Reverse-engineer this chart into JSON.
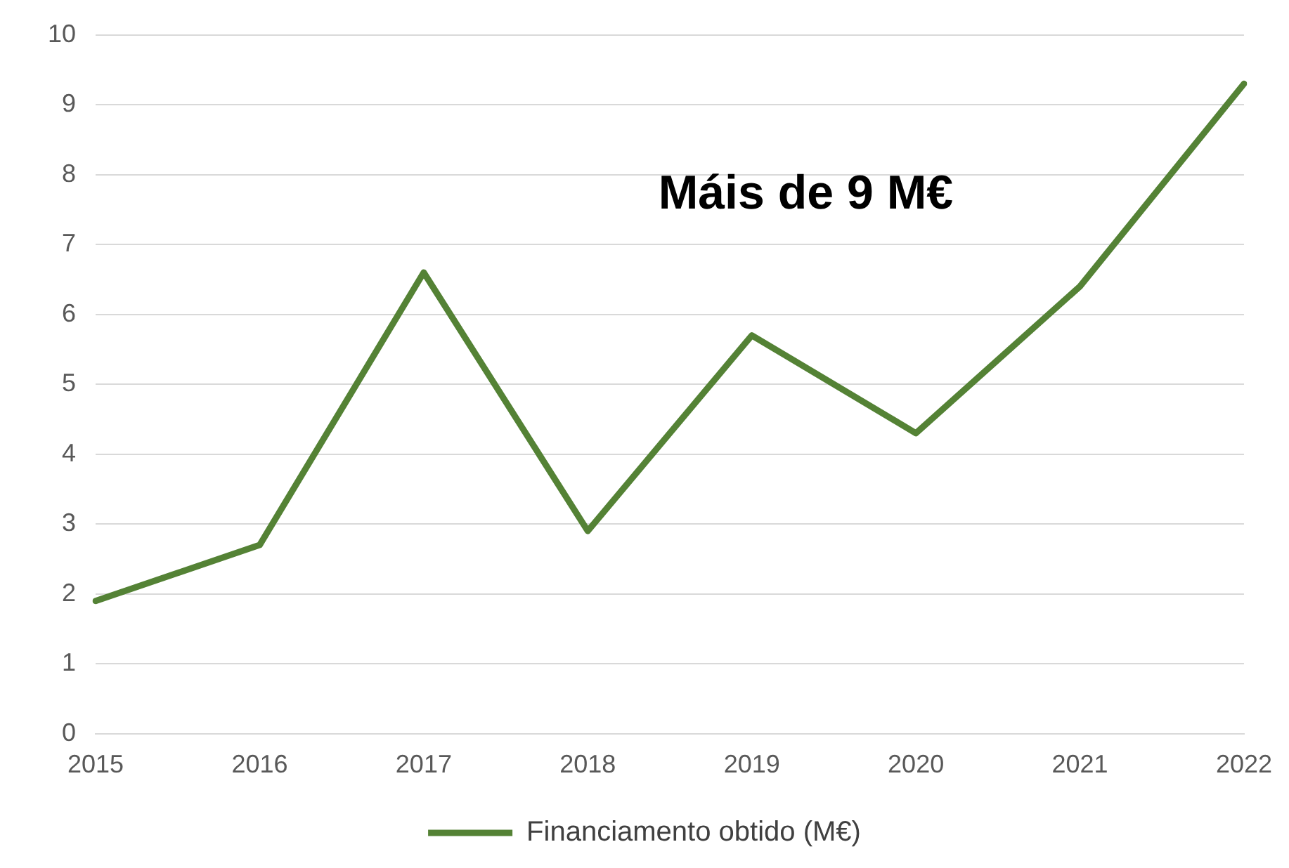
{
  "chart_data": {
    "type": "line",
    "categories": [
      "2015",
      "2016",
      "2017",
      "2018",
      "2019",
      "2020",
      "2021",
      "2022"
    ],
    "series": [
      {
        "name": "Financiamento obtido (M€)",
        "color": "#548235",
        "values": [
          1.9,
          2.7,
          6.6,
          2.9,
          5.7,
          4.3,
          6.4,
          9.3
        ]
      }
    ],
    "ylim": [
      0,
      10
    ],
    "yticks": [
      0,
      1,
      2,
      3,
      4,
      5,
      6,
      7,
      8,
      9,
      10
    ],
    "grid": "y",
    "legend": "bottom",
    "marker": "none",
    "line_style": "solid",
    "annotations": [
      "Máis de 9 M€"
    ]
  }
}
